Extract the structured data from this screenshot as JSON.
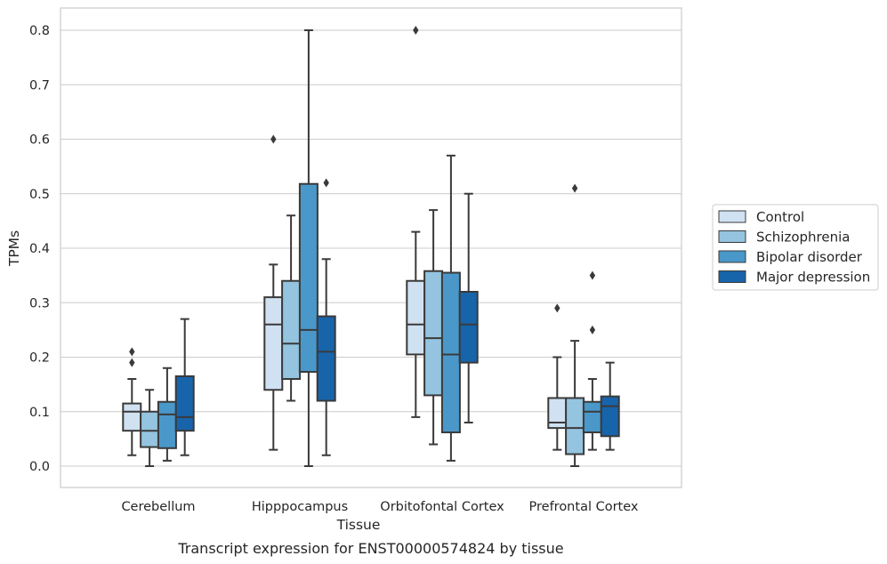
{
  "caption": "Transcript expression for ENST00000574824 by tissue",
  "chart_data": {
    "type": "box",
    "xlabel": "Tissue",
    "ylabel": "TPMs",
    "ylim": [
      -0.04,
      0.84
    ],
    "yticks": [
      0.0,
      0.1,
      0.2,
      0.3,
      0.4,
      0.5,
      0.6,
      0.7,
      0.8
    ],
    "ytick_labels": [
      "0.0",
      "0.1",
      "0.2",
      "0.3",
      "0.4",
      "0.5",
      "0.6",
      "0.7",
      "0.8"
    ],
    "grid": "horizontal",
    "legend_position": "right",
    "categories": [
      "Cerebellum",
      "Hipppocampus",
      "Orbitofontal Cortex",
      "Prefrontal Cortex"
    ],
    "series": [
      {
        "name": "Control",
        "color": "#d0e1f2",
        "boxes": [
          {
            "whislo": 0.02,
            "q1": 0.065,
            "median": 0.1,
            "q3": 0.115,
            "whishi": 0.16,
            "fliers": [
              0.19,
              0.21
            ]
          },
          {
            "whislo": 0.03,
            "q1": 0.14,
            "median": 0.26,
            "q3": 0.31,
            "whishi": 0.37,
            "fliers": [
              0.6
            ]
          },
          {
            "whislo": 0.09,
            "q1": 0.205,
            "median": 0.26,
            "q3": 0.34,
            "whishi": 0.43,
            "fliers": [
              0.8
            ]
          },
          {
            "whislo": 0.03,
            "q1": 0.07,
            "median": 0.08,
            "q3": 0.125,
            "whishi": 0.2,
            "fliers": [
              0.29
            ]
          }
        ]
      },
      {
        "name": "Schizophrenia",
        "color": "#94c4df",
        "boxes": [
          {
            "whislo": 0.0,
            "q1": 0.035,
            "median": 0.065,
            "q3": 0.1,
            "whishi": 0.14,
            "fliers": []
          },
          {
            "whislo": 0.12,
            "q1": 0.16,
            "median": 0.225,
            "q3": 0.34,
            "whishi": 0.46,
            "fliers": []
          },
          {
            "whislo": 0.04,
            "q1": 0.13,
            "median": 0.235,
            "q3": 0.358,
            "whishi": 0.47,
            "fliers": []
          },
          {
            "whislo": 0.0,
            "q1": 0.022,
            "median": 0.07,
            "q3": 0.125,
            "whishi": 0.23,
            "fliers": [
              0.51
            ]
          }
        ]
      },
      {
        "name": "Bipolar disorder",
        "color": "#4a98c9",
        "boxes": [
          {
            "whislo": 0.01,
            "q1": 0.033,
            "median": 0.095,
            "q3": 0.118,
            "whishi": 0.18,
            "fliers": []
          },
          {
            "whislo": 0.0,
            "q1": 0.173,
            "median": 0.25,
            "q3": 0.518,
            "whishi": 0.8,
            "fliers": []
          },
          {
            "whislo": 0.01,
            "q1": 0.062,
            "median": 0.205,
            "q3": 0.355,
            "whishi": 0.57,
            "fliers": []
          },
          {
            "whislo": 0.03,
            "q1": 0.062,
            "median": 0.1,
            "q3": 0.118,
            "whishi": 0.16,
            "fliers": [
              0.25,
              0.35
            ]
          }
        ]
      },
      {
        "name": "Major depression",
        "color": "#1764ab",
        "boxes": [
          {
            "whislo": 0.02,
            "q1": 0.065,
            "median": 0.09,
            "q3": 0.165,
            "whishi": 0.27,
            "fliers": []
          },
          {
            "whislo": 0.02,
            "q1": 0.12,
            "median": 0.21,
            "q3": 0.275,
            "whishi": 0.38,
            "fliers": [
              0.52
            ]
          },
          {
            "whislo": 0.08,
            "q1": 0.19,
            "median": 0.26,
            "q3": 0.32,
            "whishi": 0.5,
            "fliers": []
          },
          {
            "whislo": 0.03,
            "q1": 0.055,
            "median": 0.11,
            "q3": 0.128,
            "whishi": 0.19,
            "fliers": []
          }
        ]
      }
    ]
  }
}
